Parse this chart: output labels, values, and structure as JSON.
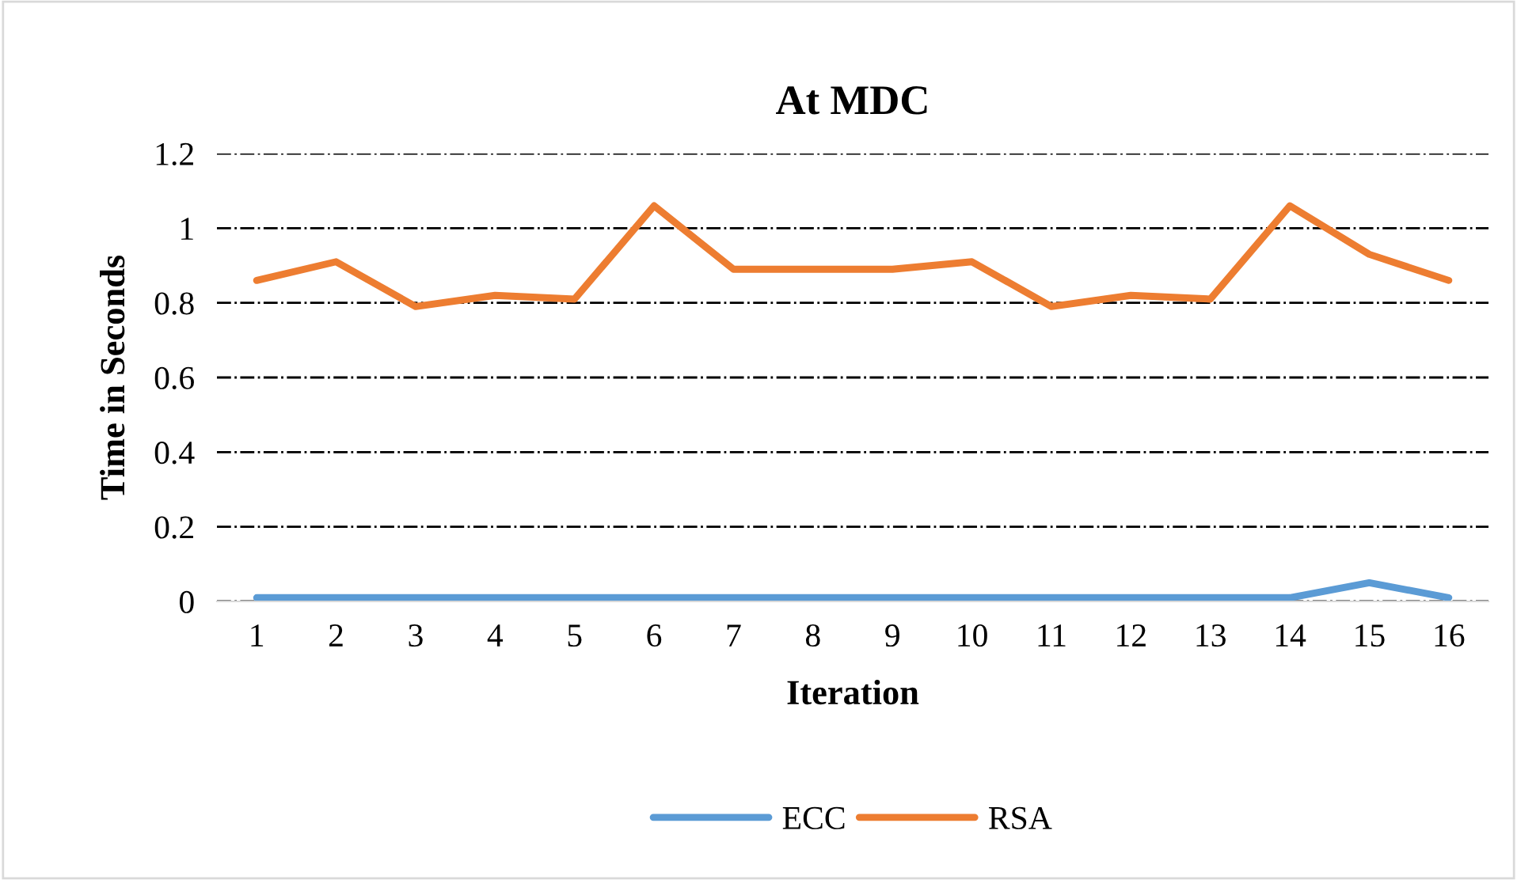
{
  "chart_data": {
    "type": "line",
    "title": "At MDC",
    "xlabel": "Iteration",
    "ylabel": "Time in Seconds",
    "categories": [
      "1",
      "2",
      "3",
      "4",
      "5",
      "6",
      "7",
      "8",
      "9",
      "10",
      "11",
      "12",
      "13",
      "14",
      "15",
      "16"
    ],
    "series": [
      {
        "name": "ECC",
        "color": "#5b9bd5",
        "values": [
          0.01,
          0.01,
          0.01,
          0.01,
          0.01,
          0.01,
          0.01,
          0.01,
          0.01,
          0.01,
          0.01,
          0.01,
          0.01,
          0.01,
          0.05,
          0.01
        ]
      },
      {
        "name": "RSA",
        "color": "#ed7d31",
        "values": [
          0.86,
          0.91,
          0.79,
          0.82,
          0.81,
          1.06,
          0.89,
          0.89,
          0.89,
          0.91,
          0.79,
          0.82,
          0.81,
          1.06,
          0.93,
          0.86
        ]
      }
    ],
    "ylim": [
      0,
      1.2
    ],
    "yticks": [
      0,
      0.2,
      0.4,
      0.6,
      0.8,
      1,
      1.2
    ],
    "grid": "y",
    "legend": "bottom",
    "marker": "none",
    "line_style": "solid"
  }
}
